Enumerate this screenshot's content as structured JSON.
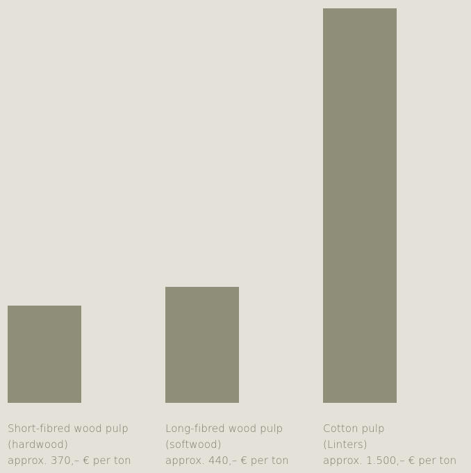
{
  "chart_data": {
    "type": "bar",
    "title": "",
    "xlabel": "",
    "ylabel": "",
    "ylim": [
      0,
      1500
    ],
    "grid": false,
    "legend": "none",
    "bar_color": "#8f8e78",
    "text_color": "#7a796a",
    "background_color": "#e4e1d9",
    "values": [
      370,
      440,
      1500
    ],
    "categories": [
      {
        "name": "Short-fibred wood pulp",
        "subname": "(hardwood)",
        "price_text": "approx. 370,– € per ton"
      },
      {
        "name": "Long-fibred wood pulp",
        "subname": "(softwood)",
        "price_text": "approx. 440,– € per ton"
      },
      {
        "name": "Cotton pulp",
        "subname": "(Linters)",
        "price_text": "approx. 1.500,– € per ton"
      }
    ]
  }
}
